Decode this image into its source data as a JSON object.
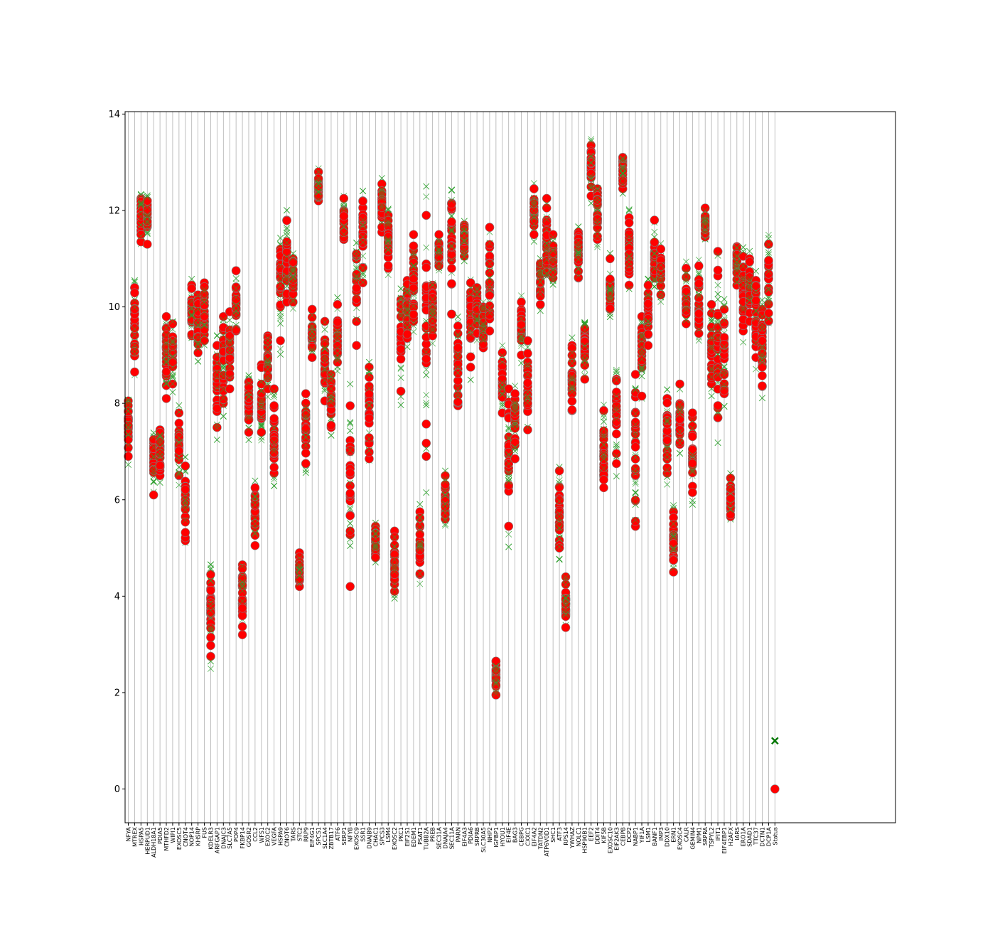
{
  "chart_data": {
    "type": "scatter",
    "title": "",
    "xlabel": "",
    "ylabel": "",
    "ylim": [
      -0.7,
      14.05
    ],
    "yticks": [
      0,
      2,
      4,
      6,
      8,
      10,
      12,
      14
    ],
    "grid": "vertical lines at each category",
    "legend": "none",
    "series": [
      {
        "marker": "x",
        "color": "#2ca02c"
      },
      {
        "marker": "filled-circle",
        "color": "#ff0000",
        "edge_color": "#808080"
      }
    ],
    "categories": [
      "NFYA",
      "MTREX",
      "HSPA5",
      "HERPUD1",
      "ALDH18A1",
      "PDIA5",
      "MTHFD2",
      "WIPI1",
      "EXOSC5",
      "CNOT4",
      "NOP14",
      "KHSRP",
      "FUS",
      "KDELR3",
      "ARFGAP1",
      "DNAJC3",
      "SLC7A5",
      "POP4",
      "FKBP14",
      "GOSR2",
      "CCL2",
      "WFS1",
      "EXOC2",
      "VEGFA",
      "HSPA9",
      "CNOT6",
      "TARS",
      "STC2",
      "RRP9",
      "EIF4G1",
      "SPCS1",
      "SLC1A4",
      "ZBTB17",
      "ATF6",
      "SERP1",
      "NFYB",
      "EXOSC9",
      "SSR1",
      "DNAJB9",
      "CHAC1",
      "SPCS3",
      "LSM4",
      "EXOSC2",
      "PKC1",
      "EIF2S1",
      "EDEM1",
      "PSAT1",
      "TUBB2A",
      "PREB",
      "SEC31A",
      "DNAJA4",
      "SEC11A",
      "PARN",
      "EIF4A3",
      "PDIA6",
      "SRPRB",
      "SLC30A5",
      "NHP2",
      "IGFBP1",
      "HYOU1",
      "EIF4E",
      "BAG3",
      "CEBPG",
      "CXXC1",
      "EIF4A2",
      "TATDN2",
      "ATP6V0D1",
      "SHC1",
      "ATF3",
      "RPS14",
      "YWHAZ",
      "NOLC1",
      "HSP90B1",
      "EEF2",
      "DDIT4",
      "KIF5B",
      "EXOSC10",
      "EIF2AK3",
      "CEBPB",
      "DCP2",
      "NABP1",
      "YIF1A",
      "LSM1",
      "BANF1",
      "IMP3",
      "DDX10",
      "ERN1",
      "EXOSC4",
      "CALR",
      "GEMIN4",
      "NPM1",
      "SRPRA",
      "TSPYL2",
      "IFIT1",
      "EIF4EBP1",
      "H2AFX",
      "IARS",
      "ERO1A",
      "SDAD1",
      "TTC37",
      "DCTN1",
      "DCP1A",
      "Status"
    ],
    "value_ranges": [
      [
        6.9,
        8.05,
        7.6
      ],
      [
        8.65,
        10.4,
        9.7
      ],
      [
        11.35,
        12.25,
        11.9
      ],
      [
        11.3,
        12.2,
        11.9
      ],
      [
        6.1,
        7.25,
        6.8
      ],
      [
        6.5,
        7.45,
        7.0
      ],
      [
        8.1,
        9.8,
        9.0
      ],
      [
        8.4,
        9.65,
        9.1
      ],
      [
        6.5,
        7.8,
        7.1
      ],
      [
        5.15,
        6.7,
        6.0
      ],
      [
        9.4,
        10.45,
        9.9
      ],
      [
        9.05,
        10.25,
        9.6
      ],
      [
        9.3,
        10.5,
        9.8
      ],
      [
        2.75,
        4.45,
        3.8
      ],
      [
        7.5,
        9.2,
        8.5
      ],
      [
        8.0,
        9.8,
        8.8
      ],
      [
        8.3,
        9.9,
        9.1
      ],
      [
        9.5,
        10.75,
        10.1
      ],
      [
        3.2,
        4.65,
        3.9
      ],
      [
        7.4,
        8.45,
        8.0
      ],
      [
        5.05,
        6.25,
        5.7
      ],
      [
        7.4,
        8.8,
        8.0
      ],
      [
        8.3,
        9.4,
        8.9
      ],
      [
        6.55,
        8.3,
        7.4
      ],
      [
        9.3,
        11.2,
        10.6
      ],
      [
        10.1,
        11.8,
        10.9
      ],
      [
        10.1,
        11.0,
        10.6
      ],
      [
        4.2,
        4.9,
        4.5
      ],
      [
        6.75,
        8.2,
        7.4
      ],
      [
        8.95,
        9.95,
        9.4
      ],
      [
        12.2,
        12.8,
        12.5
      ],
      [
        8.05,
        9.7,
        8.9
      ],
      [
        7.5,
        8.6,
        8.0
      ],
      [
        8.85,
        10.05,
        9.4
      ],
      [
        11.4,
        12.25,
        11.8
      ],
      [
        4.2,
        7.95,
        6.2
      ],
      [
        9.2,
        11.1,
        10.5
      ],
      [
        10.5,
        12.2,
        11.5
      ],
      [
        6.85,
        8.75,
        7.8
      ],
      [
        4.8,
        5.45,
        5.1
      ],
      [
        11.55,
        12.55,
        12.1
      ],
      [
        10.8,
        11.9,
        11.4
      ],
      [
        4.1,
        5.35,
        4.6
      ],
      [
        8.25,
        10.15,
        9.5
      ],
      [
        9.35,
        10.55,
        9.9
      ],
      [
        9.7,
        11.5,
        10.6
      ],
      [
        4.45,
        5.75,
        5.0
      ],
      [
        6.9,
        11.9,
        9.8
      ],
      [
        9.4,
        10.45,
        9.9
      ],
      [
        10.85,
        11.5,
        11.1
      ],
      [
        5.6,
        6.5,
        6.0
      ],
      [
        9.85,
        12.15,
        11.5
      ],
      [
        7.95,
        9.6,
        8.8
      ],
      [
        11.05,
        11.7,
        11.4
      ],
      [
        8.75,
        10.5,
        9.8
      ],
      [
        9.45,
        10.4,
        9.9
      ],
      [
        9.15,
        10.0,
        9.6
      ],
      [
        9.5,
        11.65,
        10.6
      ],
      [
        1.95,
        2.65,
        2.3
      ],
      [
        7.8,
        9.05,
        8.4
      ],
      [
        5.45,
        8.3,
        7.0
      ],
      [
        6.85,
        8.2,
        7.6
      ],
      [
        9.0,
        10.1,
        9.5
      ],
      [
        7.45,
        9.3,
        8.3
      ],
      [
        11.5,
        12.45,
        12.0
      ],
      [
        10.05,
        10.9,
        10.5
      ],
      [
        10.7,
        12.25,
        11.3
      ],
      [
        10.6,
        11.5,
        11.0
      ],
      [
        5.0,
        6.6,
        5.6
      ],
      [
        3.35,
        4.4,
        3.9
      ],
      [
        7.85,
        9.2,
        8.5
      ],
      [
        10.6,
        11.55,
        11.1
      ],
      [
        8.5,
        9.55,
        9.2
      ],
      [
        12.3,
        13.35,
        12.8
      ],
      [
        11.4,
        12.45,
        11.9
      ],
      [
        6.25,
        7.85,
        6.9
      ],
      [
        9.95,
        11.0,
        10.4
      ],
      [
        6.75,
        8.5,
        7.9
      ],
      [
        12.45,
        13.1,
        12.85
      ],
      [
        10.45,
        11.85,
        11.2
      ],
      [
        5.45,
        8.6,
        7.2
      ],
      [
        8.15,
        9.8,
        9.1
      ],
      [
        9.2,
        10.45,
        9.9
      ],
      [
        10.6,
        11.8,
        11.0
      ],
      [
        10.25,
        11.2,
        10.7
      ],
      [
        6.55,
        8.1,
        7.4
      ],
      [
        4.5,
        5.75,
        5.2
      ],
      [
        7.15,
        8.4,
        7.6
      ],
      [
        9.65,
        10.8,
        10.2
      ],
      [
        6.15,
        7.8,
        6.9
      ],
      [
        9.45,
        10.85,
        10.0
      ],
      [
        11.45,
        12.05,
        11.7
      ],
      [
        8.4,
        10.05,
        9.1
      ],
      [
        7.7,
        11.15,
        9.3
      ],
      [
        8.2,
        9.95,
        9.0
      ],
      [
        5.65,
        6.45,
        6.0
      ],
      [
        10.45,
        11.25,
        10.9
      ],
      [
        9.5,
        11.05,
        10.3
      ],
      [
        9.7,
        11.0,
        10.4
      ],
      [
        8.95,
        10.55,
        9.8
      ],
      [
        8.35,
        9.95,
        9.1
      ],
      [
        9.7,
        11.3,
        10.6
      ],
      [
        0,
        1,
        0.5
      ]
    ]
  }
}
